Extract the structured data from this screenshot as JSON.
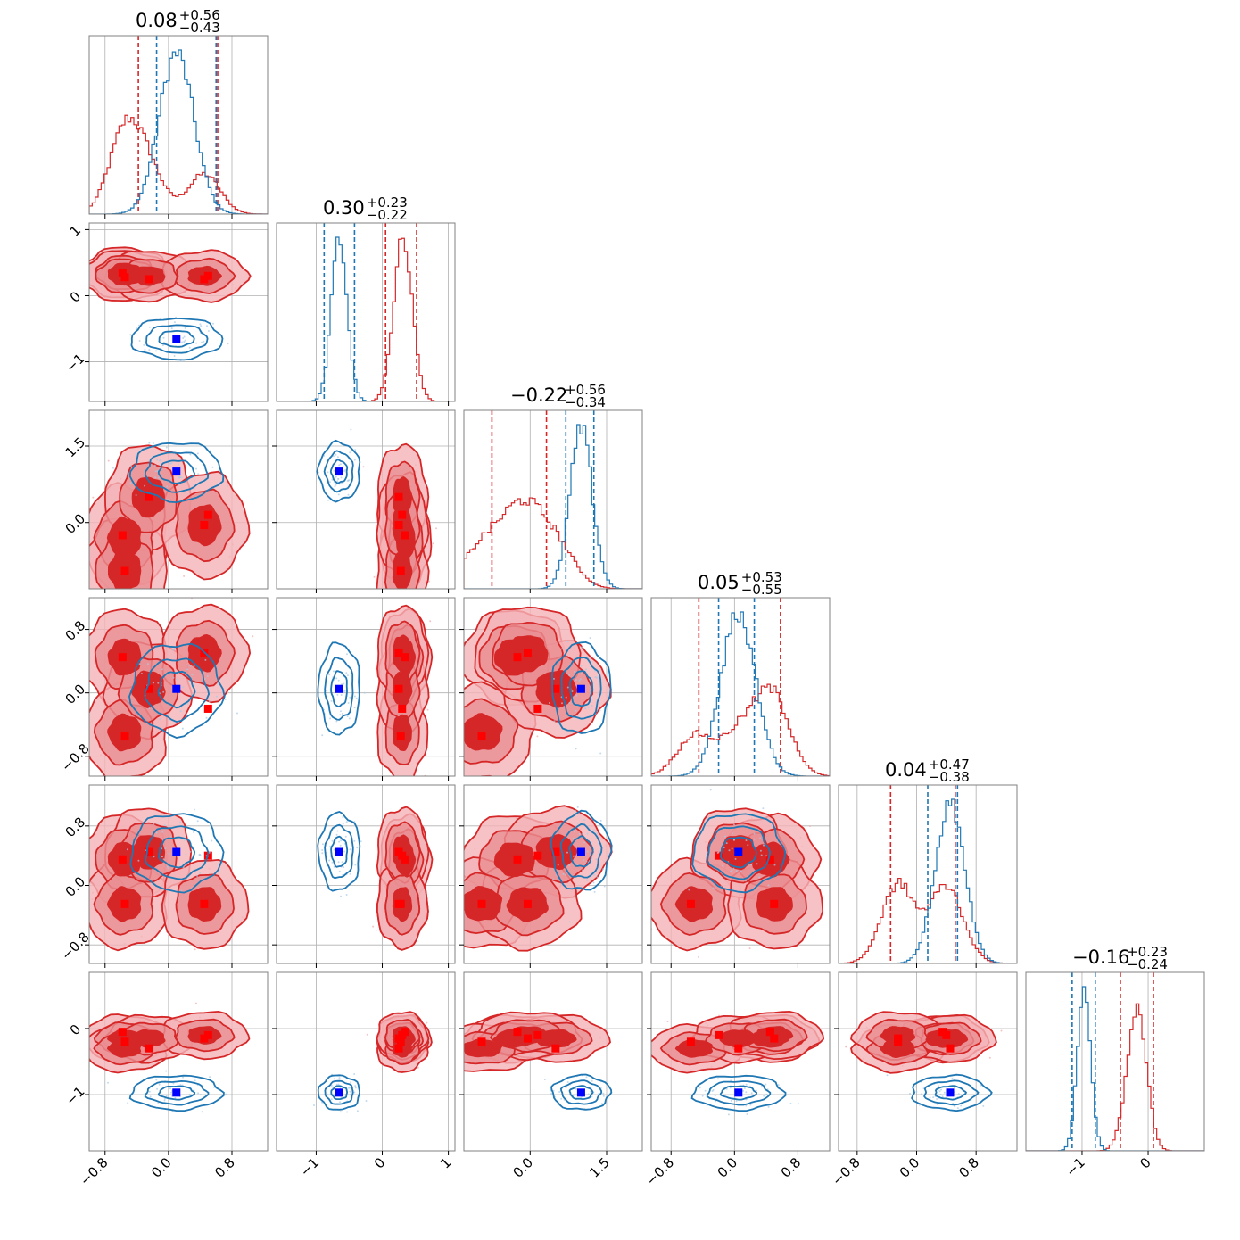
{
  "chart_data": {
    "type": "corner",
    "n_params": 6,
    "colors": {
      "red": "#d62728",
      "blue": "#1f77b4",
      "red_marker": "#ff0000",
      "blue_marker": "#0000ff"
    },
    "grid": true,
    "titles": [
      {
        "value": "0.08",
        "plus": "+0.56",
        "minus": "−0.43"
      },
      {
        "value": "0.30",
        "plus": "+0.23",
        "minus": "−0.22"
      },
      {
        "value": "−0.22",
        "plus": "+0.56",
        "minus": "−0.34"
      },
      {
        "value": "0.05",
        "plus": "+0.53",
        "minus": "−0.55"
      },
      {
        "value": "0.04",
        "plus": "+0.47",
        "minus": "−0.38"
      },
      {
        "value": "−0.16",
        "plus": "+0.23",
        "minus": "−0.24"
      }
    ],
    "ranges": [
      [
        -1.0,
        1.25
      ],
      [
        -1.6,
        1.1
      ],
      [
        -1.3,
        2.2
      ],
      [
        -1.05,
        1.2
      ],
      [
        -1.05,
        1.35
      ],
      [
        -1.85,
        0.85
      ]
    ],
    "ticks": [
      {
        "values": [
          -0.8,
          0.0,
          0.8
        ],
        "labels": [
          "−0.8",
          "0.0",
          "0.8"
        ]
      },
      {
        "values": [
          -1,
          0,
          1
        ],
        "labels": [
          "−1",
          "0",
          "1"
        ]
      },
      {
        "values": [
          0.0,
          1.5
        ],
        "labels": [
          "0.0",
          "1.5"
        ]
      },
      {
        "values": [
          -0.8,
          0.0,
          0.8
        ],
        "labels": [
          "−0.8",
          "0.0",
          "0.8"
        ]
      },
      {
        "values": [
          -0.8,
          0.0,
          0.8
        ],
        "labels": [
          "−0.8",
          "0.0",
          "0.8"
        ]
      },
      {
        "values": [
          -1,
          0
        ],
        "labels": [
          "−1",
          "0"
        ]
      }
    ],
    "series": [
      {
        "color": "red",
        "modes": [
          [
            -0.55,
            0.35,
            -0.3,
            0.45,
            0.35,
            -0.15
          ],
          [
            -0.55,
            0.3,
            -0.95,
            -0.5,
            -0.25,
            -0.3
          ],
          [
            -0.25,
            0.3,
            0.5,
            0.05,
            0.45,
            -0.15
          ],
          [
            0.45,
            0.3,
            -0.05,
            0.5,
            -0.25,
            -0.1
          ]
        ],
        "spread": [
          0.2,
          0.14,
          0.38,
          0.22,
          0.22,
          0.13
        ],
        "markers": [
          [
            -0.58,
            0.35,
            -0.25,
            0.45,
            0.35,
            -0.05
          ],
          [
            -0.55,
            0.28,
            -0.95,
            -0.55,
            -0.25,
            -0.2
          ],
          [
            -0.25,
            0.25,
            0.5,
            0.05,
            0.45,
            -0.3
          ],
          [
            0.45,
            0.25,
            -0.05,
            0.5,
            -0.25,
            -0.15
          ],
          [
            0.5,
            0.3,
            0.15,
            -0.2,
            0.4,
            -0.1
          ]
        ],
        "quantiles": [
          [
            -0.38,
            0.62
          ],
          [
            0.05,
            0.52
          ],
          [
            -0.75,
            0.32
          ],
          [
            -0.45,
            0.58
          ],
          [
            -0.35,
            0.52
          ],
          [
            -0.42,
            0.08
          ]
        ]
      },
      {
        "color": "blue",
        "modes": [
          [
            0.1,
            -0.65,
            1.0,
            0.05,
            0.45,
            -0.97
          ]
        ],
        "spread": [
          0.22,
          0.12,
          0.22,
          0.22,
          0.2,
          0.1
        ],
        "markers": [
          [
            0.1,
            -0.65,
            1.0,
            0.05,
            0.45,
            -0.97
          ]
        ],
        "quantiles": [
          [
            -0.15,
            0.6
          ],
          [
            -0.88,
            -0.42
          ],
          [
            0.7,
            1.25
          ],
          [
            -0.2,
            0.25
          ],
          [
            0.15,
            0.55
          ],
          [
            -1.15,
            -0.8
          ]
        ]
      }
    ]
  }
}
